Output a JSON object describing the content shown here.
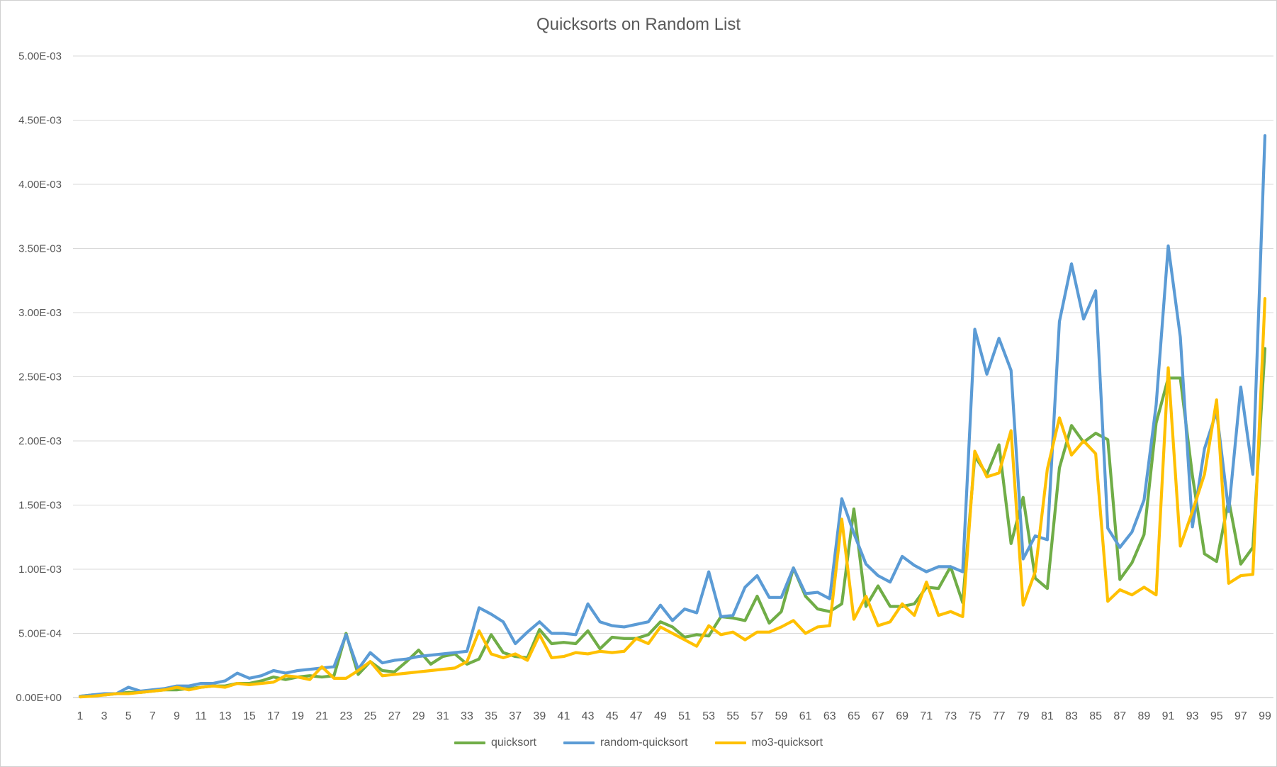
{
  "chart_data": {
    "type": "line",
    "title": "Quicksorts on Random List",
    "xlabel": "",
    "ylabel": "",
    "ylim": [
      0,
      0.005
    ],
    "yticks": [
      "0.00E+00",
      "5.00E-04",
      "1.00E-03",
      "1.50E-03",
      "2.00E-03",
      "2.50E-03",
      "3.00E-03",
      "3.50E-03",
      "4.00E-03",
      "4.50E-03",
      "5.00E-03"
    ],
    "xtick_labels": [
      "1",
      "3",
      "5",
      "7",
      "9",
      "11",
      "13",
      "15",
      "17",
      "19",
      "21",
      "23",
      "25",
      "27",
      "29",
      "31",
      "33",
      "35",
      "37",
      "39",
      "41",
      "43",
      "45",
      "47",
      "49",
      "51",
      "53",
      "55",
      "57",
      "59",
      "61",
      "63",
      "65",
      "67",
      "69",
      "71",
      "73",
      "75",
      "77",
      "79",
      "81",
      "83",
      "85",
      "87",
      "89",
      "91",
      "93",
      "95",
      "97",
      "99"
    ],
    "x": [
      1,
      2,
      3,
      4,
      5,
      6,
      7,
      8,
      9,
      10,
      11,
      12,
      13,
      14,
      15,
      16,
      17,
      18,
      19,
      20,
      21,
      22,
      23,
      24,
      25,
      26,
      27,
      28,
      29,
      30,
      31,
      32,
      33,
      34,
      35,
      36,
      37,
      38,
      39,
      40,
      41,
      42,
      43,
      44,
      45,
      46,
      47,
      48,
      49,
      50,
      51,
      52,
      53,
      54,
      55,
      56,
      57,
      58,
      59,
      60,
      61,
      62,
      63,
      64,
      65,
      66,
      67,
      68,
      69,
      70,
      71,
      72,
      73,
      74,
      75,
      76,
      77,
      78,
      79,
      80,
      81,
      82,
      83,
      84,
      85,
      86,
      87,
      88,
      89,
      90,
      91,
      92,
      93,
      94,
      95,
      96,
      97,
      98,
      99
    ],
    "grid": true,
    "legend_position": "bottom",
    "series": [
      {
        "name": "quicksort",
        "color": "#70AD47",
        "values": [
          1e-05,
          2e-05,
          2e-05,
          3e-05,
          4e-05,
          4e-05,
          5e-05,
          6e-05,
          6e-05,
          7e-05,
          8e-05,
          9e-05,
          9e-05,
          0.00011,
          0.00011,
          0.00013,
          0.00016,
          0.00014,
          0.00016,
          0.00017,
          0.00016,
          0.00017,
          0.0005,
          0.00018,
          0.00028,
          0.00021,
          0.0002,
          0.00028,
          0.00037,
          0.00026,
          0.00032,
          0.00034,
          0.00026,
          0.0003,
          0.00049,
          0.00035,
          0.00032,
          0.00031,
          0.00053,
          0.00042,
          0.00043,
          0.00042,
          0.00052,
          0.00038,
          0.00047,
          0.00046,
          0.00046,
          0.00049,
          0.00059,
          0.00055,
          0.00047,
          0.00049,
          0.00048,
          0.00063,
          0.00062,
          0.0006,
          0.00079,
          0.00058,
          0.00067,
          0.00101,
          0.00079,
          0.00069,
          0.00067,
          0.00073,
          0.00147,
          0.00071,
          0.00087,
          0.00071,
          0.00071,
          0.00073,
          0.00086,
          0.00085,
          0.00102,
          0.00074,
          0.00188,
          0.00174,
          0.00197,
          0.0012,
          0.00156,
          0.00093,
          0.00085,
          0.00179,
          0.00212,
          0.00199,
          0.00206,
          0.00201,
          0.00092,
          0.00105,
          0.00127,
          0.00214,
          0.00249,
          0.00249,
          0.00173,
          0.00112,
          0.00106,
          0.00154,
          0.00104,
          0.00117,
          0.00272
        ]
      },
      {
        "name": "random-quicksort",
        "color": "#5B9BD5",
        "values": [
          1e-05,
          2e-05,
          3e-05,
          3e-05,
          8e-05,
          5e-05,
          6e-05,
          7e-05,
          9e-05,
          9e-05,
          0.00011,
          0.00011,
          0.00013,
          0.00019,
          0.00015,
          0.00017,
          0.00021,
          0.00019,
          0.00021,
          0.00022,
          0.00023,
          0.00024,
          0.00049,
          0.00022,
          0.00035,
          0.00027,
          0.00029,
          0.0003,
          0.00032,
          0.00033,
          0.00034,
          0.00035,
          0.00036,
          0.0007,
          0.00065,
          0.00059,
          0.00042,
          0.00051,
          0.00059,
          0.0005,
          0.0005,
          0.00049,
          0.00073,
          0.00059,
          0.00056,
          0.00055,
          0.00057,
          0.00059,
          0.00072,
          0.0006,
          0.00069,
          0.00066,
          0.00098,
          0.00063,
          0.00064,
          0.00086,
          0.00095,
          0.00078,
          0.00078,
          0.00101,
          0.00081,
          0.00082,
          0.00077,
          0.00155,
          0.00128,
          0.00104,
          0.00095,
          0.0009,
          0.0011,
          0.00103,
          0.00098,
          0.00102,
          0.00102,
          0.00098,
          0.00287,
          0.00252,
          0.0028,
          0.00255,
          0.00108,
          0.00126,
          0.00123,
          0.00293,
          0.00338,
          0.00295,
          0.00317,
          0.00132,
          0.00117,
          0.00129,
          0.00154,
          0.00228,
          0.00352,
          0.00281,
          0.00133,
          0.00194,
          0.00223,
          0.00145,
          0.00242,
          0.00174,
          0.00438
        ]
      },
      {
        "name": "mo3-quicksort",
        "color": "#FFC000",
        "values": [
          5e-06,
          1e-05,
          2e-05,
          3e-05,
          3e-05,
          4e-05,
          5e-05,
          6e-05,
          8e-05,
          6e-05,
          8e-05,
          9e-05,
          8e-05,
          0.00011,
          0.0001,
          0.00011,
          0.00012,
          0.00017,
          0.00016,
          0.00014,
          0.00024,
          0.00015,
          0.00015,
          0.00021,
          0.00028,
          0.00017,
          0.00018,
          0.00019,
          0.0002,
          0.00021,
          0.00022,
          0.00023,
          0.00028,
          0.00052,
          0.00034,
          0.00031,
          0.00034,
          0.00029,
          0.00049,
          0.00031,
          0.00032,
          0.00035,
          0.00034,
          0.00036,
          0.00035,
          0.00036,
          0.00046,
          0.00042,
          0.00055,
          0.0005,
          0.00045,
          0.0004,
          0.00056,
          0.00049,
          0.00051,
          0.00045,
          0.00051,
          0.00051,
          0.00055,
          0.0006,
          0.0005,
          0.00055,
          0.00056,
          0.00139,
          0.00061,
          0.00079,
          0.00056,
          0.00059,
          0.00073,
          0.00064,
          0.0009,
          0.00064,
          0.00067,
          0.00063,
          0.00192,
          0.00172,
          0.00175,
          0.00208,
          0.00072,
          0.00098,
          0.00178,
          0.00218,
          0.00189,
          0.002,
          0.0019,
          0.00075,
          0.00084,
          0.0008,
          0.00086,
          0.0008,
          0.00257,
          0.00118,
          0.00145,
          0.00174,
          0.00232,
          0.00089,
          0.00095,
          0.00096,
          0.00311
        ]
      }
    ]
  }
}
